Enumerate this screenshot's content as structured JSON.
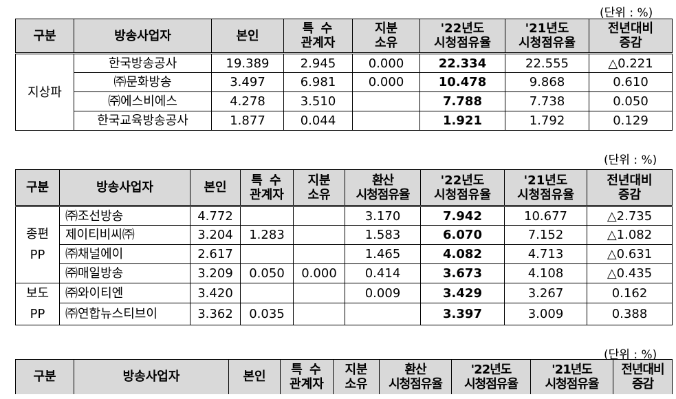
{
  "unit_label": "(단위 : %)",
  "table1": {
    "headers": {
      "group": "구분",
      "broadcaster": "방송사업자",
      "self": "본인",
      "special_line1": "특 수",
      "special_line2": "관계자",
      "share_line1": "지분",
      "share_line2": "소유",
      "y22_line1": "'22년도",
      "y22_line2": "시청점유율",
      "y21_line1": "'21년도",
      "y21_line2": "시청점유율",
      "change_line1": "전년대비",
      "change_line2": "증감"
    },
    "group_label": "지상파",
    "rows": [
      {
        "name": "한국방송공사",
        "self": "19.389",
        "special": "2.945",
        "share": "0.000",
        "y22": "22.334",
        "y21": "22.555",
        "change": "△0.221"
      },
      {
        "name": "㈜문화방송",
        "self": "3.497",
        "special": "6.981",
        "share": "0.000",
        "y22": "10.478",
        "y21": "9.868",
        "change": "0.610"
      },
      {
        "name": "㈜에스비에스",
        "self": "4.278",
        "special": "3.510",
        "share": "",
        "y22": "7.788",
        "y21": "7.738",
        "change": "0.050"
      },
      {
        "name": "한국교육방송공사",
        "self": "1.877",
        "special": "0.044",
        "share": "",
        "y22": "1.921",
        "y21": "1.792",
        "change": "0.129"
      }
    ]
  },
  "table2": {
    "unit_label": "(단위 : %)",
    "headers": {
      "group": "구분",
      "broadcaster": "방송사업자",
      "self": "본인",
      "special_line1": "특 수",
      "special_line2": "관계자",
      "share_line1": "지분",
      "share_line2": "소유",
      "conv_line1": "환산",
      "conv_line2": "시청점유율",
      "y22_line1": "'22년도",
      "y22_line2": "시청점유율",
      "y21_line1": "'21년도",
      "y21_line2": "시청점유율",
      "change_line1": "전년대비",
      "change_line2": "증감"
    },
    "group1_line1": "종편",
    "group1_line2": "PP",
    "group2_line1": "보도",
    "group2_line2": "PP",
    "rows": [
      {
        "name": "㈜조선방송",
        "self": "4.772",
        "special": "",
        "share": "",
        "conv": "3.170",
        "y22": "7.942",
        "y21": "10.677",
        "change": "△2.735"
      },
      {
        "name": "제이티비씨㈜",
        "self": "3.204",
        "special": "1.283",
        "share": "",
        "conv": "1.583",
        "y22": "6.070",
        "y21": "7.152",
        "change": "△1.082"
      },
      {
        "name": "㈜채널에이",
        "self": "2.617",
        "special": "",
        "share": "",
        "conv": "1.465",
        "y22": "4.082",
        "y21": "4.713",
        "change": "△0.631"
      },
      {
        "name": "㈜매일방송",
        "self": "3.209",
        "special": "0.050",
        "share": "0.000",
        "conv": "0.414",
        "y22": "3.673",
        "y21": "4.108",
        "change": "△0.435"
      },
      {
        "name": "㈜와이티엔",
        "self": "3.420",
        "special": "",
        "share": "",
        "conv": "0.009",
        "y22": "3.429",
        "y21": "3.267",
        "change": "0.162"
      },
      {
        "name": "㈜연합뉴스티브이",
        "self": "3.362",
        "special": "0.035",
        "share": "",
        "conv": "",
        "y22": "3.397",
        "y21": "3.009",
        "change": "0.388"
      }
    ]
  },
  "table3": {
    "unit_label": "(단위 : %)",
    "headers": {
      "group": "구분",
      "broadcaster": "방송사업자",
      "self": "본인",
      "special_line1": "특 수",
      "special_line2": "관계자",
      "share_line1": "지분",
      "share_line2": "소유",
      "conv_line1": "환산",
      "conv_line2": "시청점유율",
      "y22_line1": "'22년도",
      "y22_line2": "시청점유율",
      "y21_line1": "'21년도",
      "y21_line2": "시청점유율",
      "change_line1": "전년대비",
      "change_line2": "증감"
    }
  }
}
